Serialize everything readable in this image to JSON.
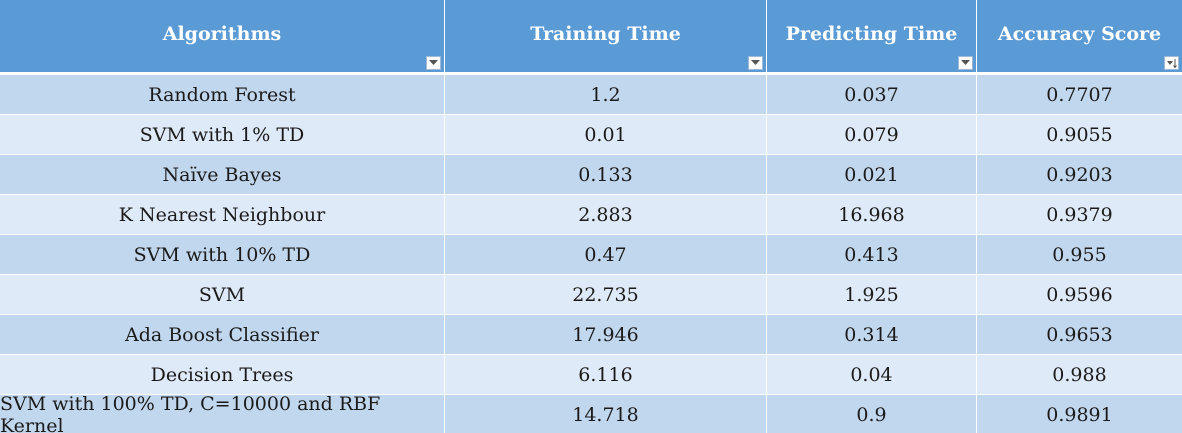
{
  "table": {
    "columns": [
      {
        "label": "Algorithms",
        "filter_icon": "dropdown-arrow-icon"
      },
      {
        "label": "Training Time",
        "filter_icon": "dropdown-arrow-icon"
      },
      {
        "label": "Predicting Time",
        "filter_icon": "dropdown-arrow-icon"
      },
      {
        "label": "Accuracy Score",
        "filter_icon": "sort-ascending-icon"
      }
    ],
    "rows": [
      [
        "Random Forest",
        "1.2",
        "0.037",
        "0.7707"
      ],
      [
        "SVM with 1% TD",
        "0.01",
        "0.079",
        "0.9055"
      ],
      [
        "Naïve Bayes",
        "0.133",
        "0.021",
        "0.9203"
      ],
      [
        "K Nearest Neighbour",
        "2.883",
        "16.968",
        "0.9379"
      ],
      [
        "SVM with 10% TD",
        "0.47",
        "0.413",
        "0.955"
      ],
      [
        "SVM",
        "22.735",
        "1.925",
        "0.9596"
      ],
      [
        "Ada Boost Classifier",
        "17.946",
        "0.314",
        "0.9653"
      ],
      [
        "Decision Trees",
        "6.116",
        "0.04",
        "0.988"
      ],
      [
        "SVM with 100% TD, C=10000 and RBF Kernel",
        "14.718",
        "0.9",
        "0.9891"
      ]
    ]
  },
  "colors": {
    "header_bg": "#5b9bd5",
    "row_dark": "#c1d7ee",
    "row_light": "#deeaf7"
  }
}
